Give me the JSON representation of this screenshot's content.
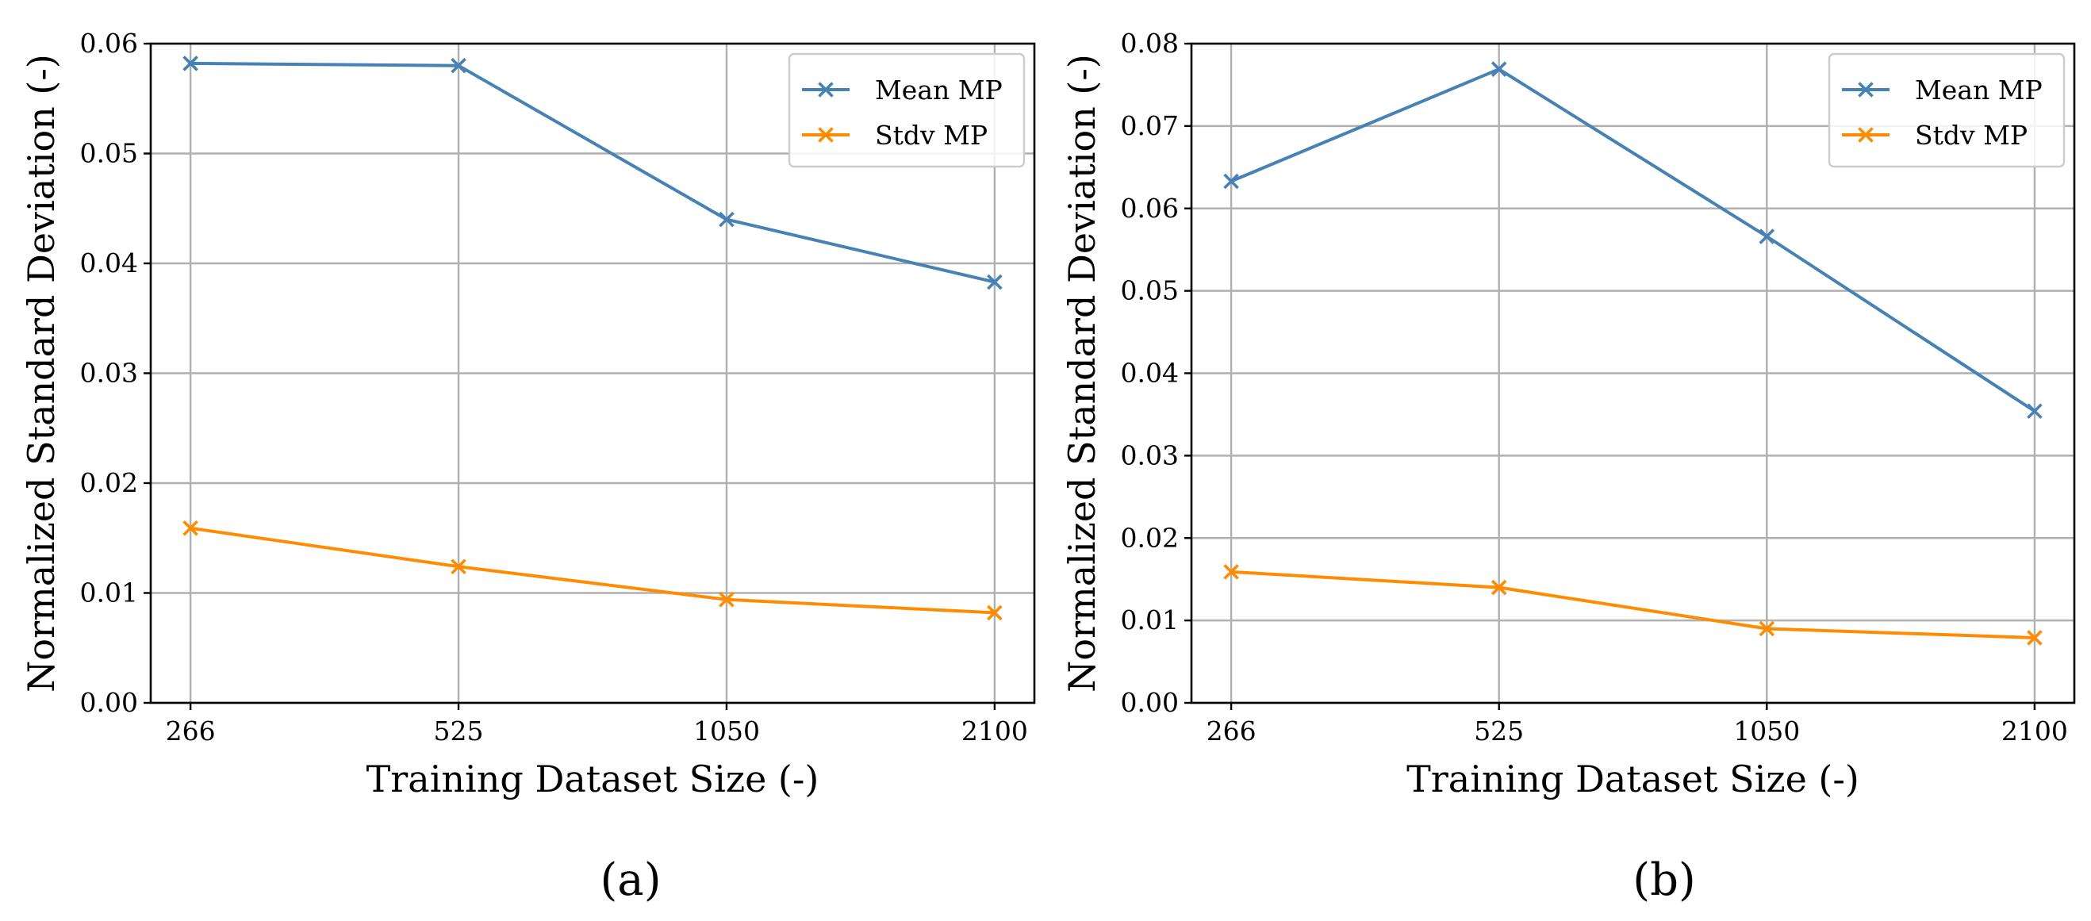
{
  "colors": {
    "series_1": "#4682b4",
    "series_2": "#ff8c00"
  },
  "chart_data": [
    {
      "type": "line",
      "panel_label": "(a)",
      "title": "",
      "xlabel": "Training Dataset Size (-)",
      "ylabel": "Normalized Standard Deviation (-)",
      "categories": [
        "266",
        "525",
        "1050",
        "2100"
      ],
      "ylim": [
        0,
        0.06
      ],
      "yticks": [
        "0.00",
        "0.01",
        "0.02",
        "0.03",
        "0.04",
        "0.05",
        "0.06"
      ],
      "grid": true,
      "legend_position": "top-right",
      "marker": "x",
      "series": [
        {
          "name": "Mean MP",
          "values": [
            0.0582,
            0.058,
            0.044,
            0.0383
          ]
        },
        {
          "name": "Stdv MP",
          "values": [
            0.0159,
            0.0124,
            0.0094,
            0.0082
          ]
        }
      ]
    },
    {
      "type": "line",
      "panel_label": "(b)",
      "title": "",
      "xlabel": "Training Dataset Size (-)",
      "ylabel": "Normalized Standard Deviation (-)",
      "categories": [
        "266",
        "525",
        "1050",
        "2100"
      ],
      "ylim": [
        0,
        0.08
      ],
      "yticks": [
        "0.00",
        "0.01",
        "0.02",
        "0.03",
        "0.04",
        "0.05",
        "0.06",
        "0.07",
        "0.08"
      ],
      "grid": true,
      "legend_position": "top-right",
      "marker": "x",
      "series": [
        {
          "name": "Mean MP",
          "values": [
            0.0633,
            0.0769,
            0.0566,
            0.0354
          ]
        },
        {
          "name": "Stdv MP",
          "values": [
            0.0159,
            0.014,
            0.009,
            0.0079
          ]
        }
      ]
    }
  ]
}
